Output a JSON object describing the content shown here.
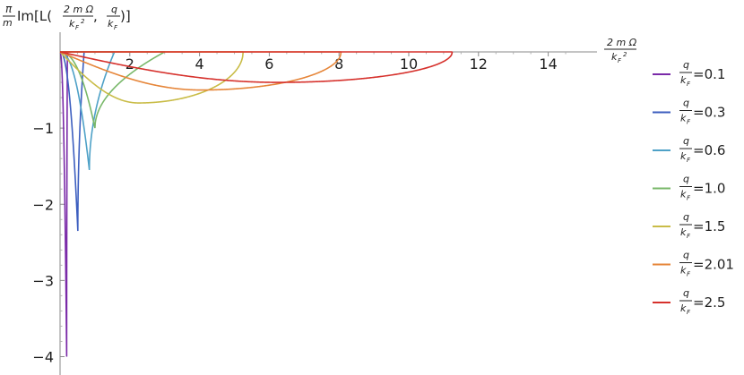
{
  "chart_data": {
    "type": "line",
    "ylabel": {
      "prefix_num": "π",
      "prefix_den": "m",
      "text_open": "Im[L(",
      "frac1_num": "2 m Ω",
      "frac1_den": "k",
      "frac1_den_sub": "F",
      "frac1_den_sup": "2",
      "separator": ", ",
      "frac2_num": "q",
      "frac2_den": "k",
      "frac2_den_sub": "F",
      "text_close": ")]"
    },
    "xlabel": {
      "num": "2 m Ω",
      "den": "k",
      "den_sub": "F",
      "den_sup": "2"
    },
    "xlim": [
      -0.15,
      15
    ],
    "ylim": [
      -4.1,
      0.05
    ],
    "xticks": [
      2,
      4,
      6,
      8,
      10,
      12,
      14
    ],
    "xtick_labels": [
      "2",
      "4",
      "6",
      "8",
      "10",
      "12",
      "14"
    ],
    "yticks": [
      -1,
      -2,
      -3,
      -4
    ],
    "ytick_labels": [
      "−1",
      "−2",
      "−3",
      "−4"
    ],
    "grid": false,
    "legend_position": "right",
    "legend_label": {
      "num": "q",
      "den": "k",
      "den_sub": "F"
    },
    "series": [
      {
        "name": "=0.1",
        "q": 0.1,
        "color": "#7a2aa8",
        "x_start": 0.19,
        "x_end": 0.21,
        "y_min": -4.0,
        "x_at_min": 0.19
      },
      {
        "name": "=0.3",
        "q": 0.3,
        "color": "#3c5ebf",
        "x_start": 0.51,
        "x_end": 0.69,
        "y_min": -2.35,
        "x_at_min": 0.51
      },
      {
        "name": "=0.6",
        "q": 0.6,
        "color": "#4ea1c7",
        "x_start": 0.84,
        "x_end": 1.56,
        "y_min": -1.55,
        "x_at_min": 0.84
      },
      {
        "name": "=1.0",
        "q": 1.0,
        "color": "#79b86a",
        "x_start": 1.0,
        "x_end": 3.0,
        "y_min": -1.0,
        "x_at_min": 1.0
      },
      {
        "name": "=1.5",
        "q": 1.5,
        "color": "#c9bc47",
        "x_start": 0.75,
        "x_end": 5.25,
        "y_min": -0.67,
        "x_at_min": 2.25
      },
      {
        "name": "=2.01",
        "q": 2.01,
        "color": "#e6863a",
        "x_start": 0.0,
        "x_end": 8.06,
        "y_min": -0.5,
        "x_at_min": 4.04
      },
      {
        "name": "=2.5",
        "q": 2.5,
        "color": "#d6312c",
        "x_start": 1.25,
        "x_end": 11.25,
        "y_min": -0.4,
        "x_at_min": 6.25
      }
    ]
  }
}
